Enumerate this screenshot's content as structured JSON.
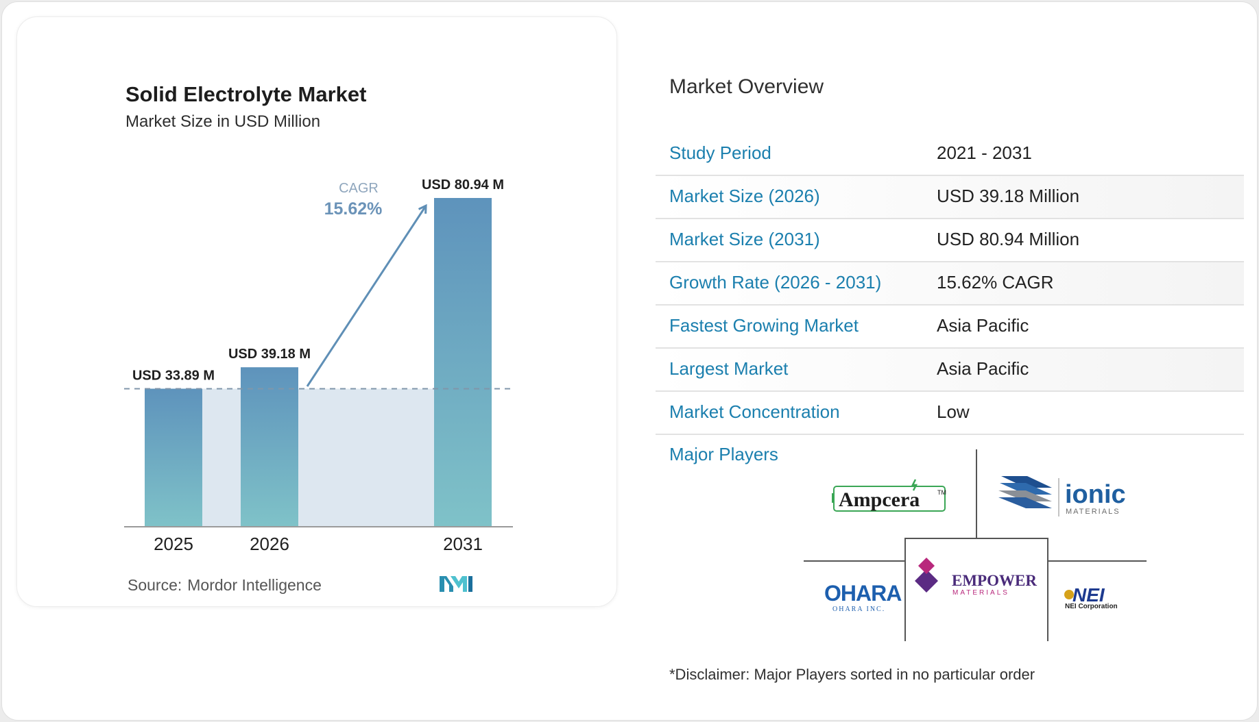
{
  "chart": {
    "title": "Solid Electrolyte Market",
    "subtitle": "Market Size in USD Million",
    "cagr_label": "CAGR",
    "cagr_value": "15.62%",
    "source_label": "Source:",
    "source_name": "Mordor Intelligence",
    "logo": "mordor-intelligence-logo"
  },
  "chart_data": {
    "type": "bar",
    "title": "Solid Electrolyte Market",
    "subtitle": "Market Size in USD Million",
    "categories": [
      "2025",
      "2026",
      "2031"
    ],
    "values": [
      33.89,
      39.18,
      80.94
    ],
    "data_labels": [
      "USD 33.89 M",
      "USD 39.18 M",
      "USD 80.94 M"
    ],
    "ylim": [
      0,
      85
    ],
    "reference_line_value": 33.89,
    "annotation": {
      "label": "CAGR",
      "value": "15.62%"
    },
    "grid": false,
    "colors": {
      "bar_top": "#5e93bc",
      "bar_bottom": "#7fc2c8",
      "band": "#dde7f0",
      "arrow": "#5f8fb6"
    }
  },
  "overview": {
    "title": "Market Overview",
    "rows": [
      {
        "label": "Study Period",
        "value": "2021 - 2031"
      },
      {
        "label": "Market Size (2026)",
        "value": "USD 39.18 Million"
      },
      {
        "label": "Market Size (2031)",
        "value": "USD 80.94 Million"
      },
      {
        "label": "Growth Rate (2026 - 2031)",
        "value": "15.62% CAGR"
      },
      {
        "label": "Fastest Growing Market",
        "value": "Asia Pacific"
      },
      {
        "label": "Largest Market",
        "value": "Asia Pacific"
      },
      {
        "label": "Market Concentration",
        "value": "Low"
      }
    ],
    "label_color": "#1b7fae"
  },
  "players": {
    "label": "Major Players",
    "ampcera": {
      "name": "Ampcera",
      "tm": "TM"
    },
    "ionic": {
      "name": "ionic",
      "sub": "MATERIALS"
    },
    "ohara": {
      "name": "OHARA",
      "sub": "OHARA INC."
    },
    "empower": {
      "name": "EMPOWER",
      "sub": "MATERIALS"
    },
    "nei": {
      "name": "NEI",
      "sub": "NEI Corporation"
    }
  },
  "disclaimer": "*Disclaimer: Major Players sorted in no particular order"
}
